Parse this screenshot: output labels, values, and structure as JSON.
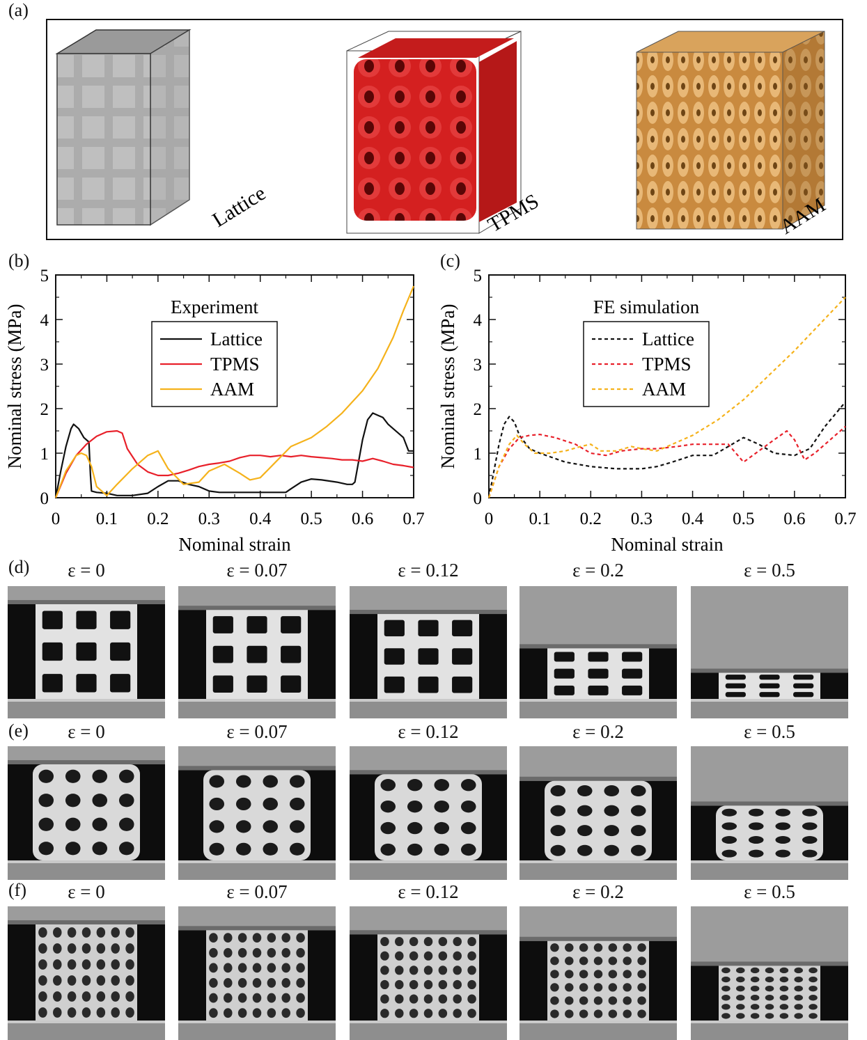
{
  "panels": {
    "a": "(a)",
    "b": "(b)",
    "c": "(c)",
    "d": "(d)",
    "e": "(e)",
    "f": "(f)"
  },
  "models": [
    {
      "label": "Lattice",
      "color": "#555555"
    },
    {
      "label": "TPMS",
      "color": "#d42020"
    },
    {
      "label": "AAM",
      "color": "#d9a35c"
    }
  ],
  "colors": {
    "lattice": "#111111",
    "tpms": "#e8202a",
    "aam": "#f5b21b"
  },
  "strain_labels": [
    "ε = 0",
    "ε = 0.07",
    "ε = 0.12",
    "ε = 0.2",
    "ε = 0.5"
  ],
  "strain_values": [
    0,
    0.07,
    0.12,
    0.2,
    0.5
  ],
  "chart_data": [
    {
      "type": "line",
      "panel": "(b)",
      "title": "Experiment",
      "xlabel": "Nominal strain",
      "ylabel": "Nominal stress (MPa)",
      "xlim": [
        0,
        0.7
      ],
      "ylim": [
        0,
        5
      ],
      "xticks": [
        "0",
        "0.1",
        "0.2",
        "0.3",
        "0.4",
        "0.5",
        "0.6",
        "0.7"
      ],
      "yticks": [
        "0",
        "1",
        "2",
        "3",
        "4",
        "5"
      ],
      "legend_placement": "upper-center",
      "series": [
        {
          "name": "Lattice",
          "style": "solid",
          "color": "#111111",
          "x": [
            0,
            0.01,
            0.02,
            0.03,
            0.035,
            0.045,
            0.055,
            0.065,
            0.068,
            0.07,
            0.08,
            0.1,
            0.12,
            0.15,
            0.18,
            0.2,
            0.22,
            0.24,
            0.26,
            0.28,
            0.3,
            0.32,
            0.35,
            0.4,
            0.45,
            0.46,
            0.48,
            0.5,
            0.52,
            0.55,
            0.57,
            0.58,
            0.585,
            0.6,
            0.61,
            0.62,
            0.63,
            0.64,
            0.65,
            0.66,
            0.67,
            0.68,
            0.69,
            0.7
          ],
          "y": [
            0,
            0.6,
            1.15,
            1.55,
            1.65,
            1.55,
            1.35,
            1.25,
            0.5,
            0.15,
            0.12,
            0.1,
            0.05,
            0.05,
            0.1,
            0.25,
            0.38,
            0.38,
            0.3,
            0.25,
            0.15,
            0.12,
            0.12,
            0.12,
            0.12,
            0.2,
            0.35,
            0.42,
            0.4,
            0.35,
            0.3,
            0.3,
            0.35,
            1.3,
            1.75,
            1.9,
            1.85,
            1.8,
            1.65,
            1.55,
            1.45,
            1.35,
            1.05,
            1.05
          ]
        },
        {
          "name": "TPMS",
          "style": "solid",
          "color": "#e8202a",
          "x": [
            0,
            0.02,
            0.04,
            0.06,
            0.08,
            0.1,
            0.12,
            0.13,
            0.14,
            0.16,
            0.18,
            0.2,
            0.22,
            0.24,
            0.26,
            0.28,
            0.3,
            0.32,
            0.34,
            0.36,
            0.38,
            0.4,
            0.42,
            0.44,
            0.46,
            0.48,
            0.5,
            0.52,
            0.54,
            0.56,
            0.58,
            0.6,
            0.62,
            0.64,
            0.66,
            0.68,
            0.7
          ],
          "y": [
            0,
            0.55,
            0.95,
            1.2,
            1.38,
            1.48,
            1.5,
            1.45,
            1.1,
            0.75,
            0.58,
            0.5,
            0.5,
            0.55,
            0.62,
            0.7,
            0.75,
            0.78,
            0.82,
            0.9,
            0.95,
            0.95,
            0.92,
            0.95,
            0.92,
            0.95,
            0.92,
            0.9,
            0.88,
            0.85,
            0.85,
            0.82,
            0.88,
            0.82,
            0.75,
            0.72,
            0.68
          ]
        },
        {
          "name": "AAM",
          "style": "solid",
          "color": "#f5b21b",
          "x": [
            0,
            0.02,
            0.04,
            0.05,
            0.06,
            0.07,
            0.08,
            0.1,
            0.12,
            0.15,
            0.18,
            0.2,
            0.22,
            0.25,
            0.28,
            0.3,
            0.33,
            0.36,
            0.38,
            0.4,
            0.43,
            0.46,
            0.5,
            0.53,
            0.56,
            0.6,
            0.63,
            0.66,
            0.68,
            0.7
          ],
          "y": [
            0,
            0.6,
            0.95,
            1.0,
            0.95,
            0.7,
            0.25,
            0.05,
            0.3,
            0.65,
            0.95,
            1.05,
            0.65,
            0.3,
            0.35,
            0.6,
            0.75,
            0.55,
            0.4,
            0.45,
            0.8,
            1.15,
            1.35,
            1.6,
            1.9,
            2.4,
            2.9,
            3.6,
            4.2,
            4.75
          ]
        }
      ]
    },
    {
      "type": "line",
      "panel": "(c)",
      "title": "FE simulation",
      "xlabel": "Nominal strain",
      "ylabel": "Nominal stress (MPa)",
      "xlim": [
        0,
        0.7
      ],
      "ylim": [
        0,
        5
      ],
      "xticks": [
        "0",
        "0.1",
        "0.2",
        "0.3",
        "0.4",
        "0.5",
        "0.6",
        "0.7"
      ],
      "yticks": [
        "0",
        "1",
        "2",
        "3",
        "4",
        "5"
      ],
      "legend_placement": "upper-center",
      "series": [
        {
          "name": "Lattice",
          "style": "dashed",
          "color": "#111111",
          "x": [
            0,
            0.01,
            0.02,
            0.03,
            0.04,
            0.05,
            0.06,
            0.08,
            0.1,
            0.15,
            0.2,
            0.25,
            0.3,
            0.33,
            0.36,
            0.4,
            0.44,
            0.47,
            0.5,
            0.53,
            0.56,
            0.6,
            0.63,
            0.66,
            0.7
          ],
          "y": [
            0,
            0.6,
            1.2,
            1.65,
            1.82,
            1.7,
            1.4,
            1.1,
            1.0,
            0.8,
            0.7,
            0.65,
            0.65,
            0.7,
            0.8,
            0.95,
            0.95,
            1.15,
            1.35,
            1.2,
            1.0,
            0.95,
            1.1,
            1.6,
            2.15
          ]
        },
        {
          "name": "TPMS",
          "style": "dashed",
          "color": "#e8202a",
          "x": [
            0,
            0.02,
            0.04,
            0.06,
            0.08,
            0.1,
            0.13,
            0.17,
            0.2,
            0.23,
            0.26,
            0.3,
            0.33,
            0.37,
            0.4,
            0.44,
            0.47,
            0.5,
            0.53,
            0.56,
            0.585,
            0.6,
            0.62,
            0.64,
            0.67,
            0.7
          ],
          "y": [
            0,
            0.7,
            1.1,
            1.35,
            1.4,
            1.42,
            1.35,
            1.2,
            1.0,
            0.95,
            1.05,
            1.1,
            1.1,
            1.15,
            1.2,
            1.2,
            1.2,
            0.8,
            1.05,
            1.3,
            1.5,
            1.3,
            0.85,
            1.0,
            1.3,
            1.6
          ]
        },
        {
          "name": "AAM",
          "style": "dashed",
          "color": "#f5b21b",
          "x": [
            0,
            0.02,
            0.04,
            0.055,
            0.07,
            0.09,
            0.12,
            0.15,
            0.18,
            0.2,
            0.22,
            0.25,
            0.28,
            0.3,
            0.33,
            0.36,
            0.4,
            0.45,
            0.5,
            0.55,
            0.6,
            0.65,
            0.7
          ],
          "y": [
            0,
            0.7,
            1.2,
            1.4,
            1.2,
            1.0,
            1.0,
            1.05,
            1.15,
            1.2,
            1.05,
            1.05,
            1.15,
            1.1,
            1.05,
            1.2,
            1.4,
            1.75,
            2.2,
            2.75,
            3.3,
            3.9,
            4.5
          ]
        }
      ]
    }
  ]
}
